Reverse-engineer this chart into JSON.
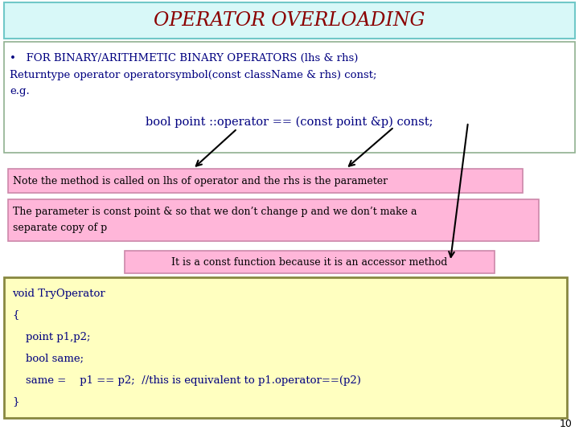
{
  "title": "OPERATOR OVERLOADING",
  "title_color": "#8B0000",
  "title_bg": "#D8F8F8",
  "slide_bg": "#FFFFFF",
  "bullet_line1": "•   FOR BINARY/ARITHMETIC BINARY OPERATORS (lhs & rhs)",
  "bullet_line2": "Returntype operator operatorsymbol(const className & rhs) const;",
  "bullet_line3": "e.g.",
  "eg_text": "bool point ::operator == (const point &p) const;",
  "note1_text": "Note the method is called on lhs of operator and the rhs is the parameter",
  "note2_line1": "The parameter is const point & so that we don’t change p and we don’t make a",
  "note2_line2": "separate copy of p",
  "note3_text": "It is a const function because it is an accessor method",
  "note_bg": "#FFB6D9",
  "note_edge": "#CC88AA",
  "code_bg": "#FFFFC0",
  "code_edge": "#888840",
  "code_lines": [
    "void TryOperator",
    "{",
    "    point p1,p2;",
    "    bool same;",
    "    same =    p1 == p2;  //this is equivalent to p1.operator==(p2)",
    "}"
  ],
  "text_color": "#000080",
  "note_text_color": "#000000",
  "page_num": "10",
  "title_fontsize": 17,
  "bullet_fontsize": 9.5,
  "eg_fontsize": 10.5,
  "note_fontsize": 9,
  "code_fontsize": 9.5
}
